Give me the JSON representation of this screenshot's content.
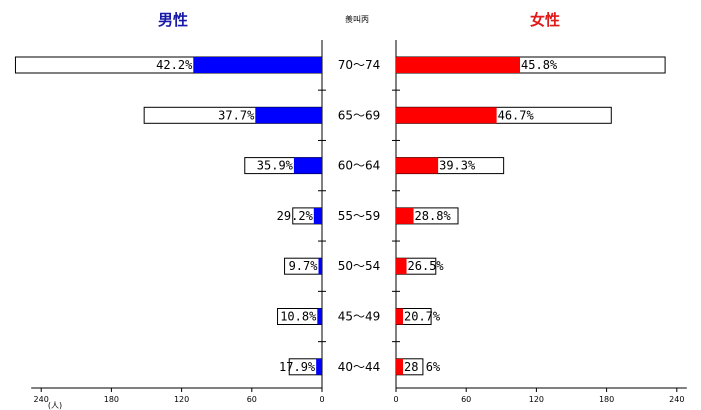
{
  "chart_data": {
    "type": "bar",
    "layout": "population-pyramid",
    "left_title": "男性",
    "right_title": "女性",
    "center_label": "羨叫丙",
    "unit_label": "(人)",
    "left_color": "#0000ff",
    "right_color": "#ff0000",
    "outline_color": "#000000",
    "axis_ticks_left": [
      "240",
      "180",
      "120",
      "60",
      "0"
    ],
    "axis_ticks_right": [
      "0",
      "60",
      "120",
      "180",
      "240"
    ],
    "xlim": [
      0,
      240
    ],
    "categories": [
      "70～74",
      "65～69",
      "60～64",
      "55～59",
      "50～54",
      "45～49",
      "40～44"
    ],
    "series": [
      {
        "side": "left",
        "totals": [
          262,
          152,
          66,
          25,
          32,
          38,
          28
        ],
        "filled": [
          110,
          57,
          24,
          7,
          3,
          4,
          5
        ],
        "labels": [
          "42.2%",
          "37.7%",
          "35.9%",
          "29.2%",
          "9.7%",
          "10.8%",
          "17.9%"
        ]
      },
      {
        "side": "right",
        "totals": [
          230,
          184,
          92,
          53,
          34,
          30,
          23
        ],
        "filled": [
          106,
          86,
          36,
          15,
          9,
          6,
          6
        ],
        "labels": [
          "45.8%",
          "46.7%",
          "39.3%",
          "28.8%",
          "26.5%",
          "20.7%",
          "28 6%"
        ]
      }
    ]
  }
}
